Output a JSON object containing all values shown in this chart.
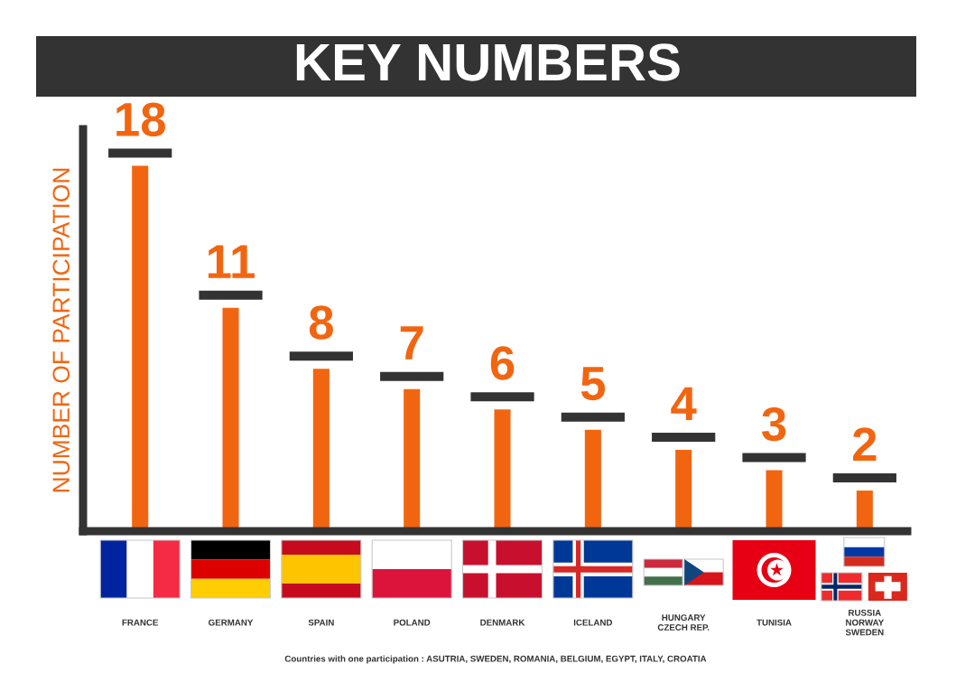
{
  "chart_data": {
    "type": "bar",
    "title": "KEY NUMBERS",
    "ylabel": "NUMBER OF PARTICIPATION",
    "categories": [
      "FRANCE",
      "GERMANY",
      "SPAIN",
      "POLAND",
      "DENMARK",
      "ICELAND",
      "HUNGARY\nCZECH REP.",
      "TUNISIA",
      "RUSSIA\nNORWAY\nSWEDEN"
    ],
    "values": [
      18,
      11,
      8,
      7,
      6,
      5,
      4,
      3,
      2
    ],
    "color": "#f26510",
    "data_labels": true,
    "tick_labels": "x",
    "annotations": [
      "Countries with one participation : ASUTRIA, SWEDEN, ROMANIA, BELGIUM, EGYPT, ITALY, CROATIA"
    ]
  }
}
